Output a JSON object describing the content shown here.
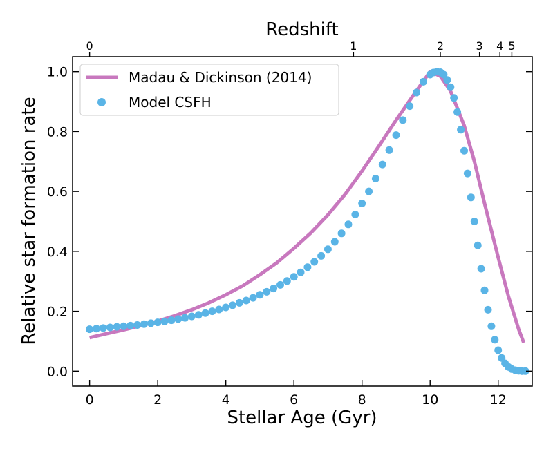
{
  "chart_data": {
    "type": "line+scatter",
    "xlabel": "Stellar Age (Gyr)",
    "ylabel": "Relative star formation rate",
    "top_xlabel": "Redshift",
    "xlim": [
      -0.5,
      13.0
    ],
    "ylim": [
      -0.05,
      1.05
    ],
    "x_ticks": [
      0,
      2,
      4,
      6,
      8,
      10,
      12
    ],
    "x_tick_labels": [
      "0",
      "2",
      "4",
      "6",
      "8",
      "10",
      "12"
    ],
    "y_ticks": [
      0.0,
      0.2,
      0.4,
      0.6,
      0.8,
      1.0
    ],
    "y_tick_labels": [
      "0.0",
      "0.2",
      "0.4",
      "0.6",
      "0.8",
      "1.0"
    ],
    "top_ticks": [
      {
        "label": "0",
        "age": 0.0
      },
      {
        "label": "1",
        "age": 7.75
      },
      {
        "label": "2",
        "age": 10.3
      },
      {
        "label": "3",
        "age": 11.45
      },
      {
        "label": "4",
        "age": 12.05
      },
      {
        "label": "5",
        "age": 12.4
      }
    ],
    "legend_position": "upper-left",
    "series": [
      {
        "name": "Madau & Dickinson (2014)",
        "kind": "line",
        "color": "#c878be",
        "x": [
          0.0,
          0.5,
          1.0,
          1.5,
          2.0,
          2.5,
          3.0,
          3.5,
          4.0,
          4.5,
          5.0,
          5.5,
          6.0,
          6.5,
          7.0,
          7.5,
          8.0,
          8.5,
          9.0,
          9.5,
          10.0,
          10.3,
          10.6,
          11.0,
          11.3,
          11.6,
          12.0,
          12.3,
          12.6,
          12.75
        ],
        "y": [
          0.112,
          0.125,
          0.138,
          0.152,
          0.167,
          0.185,
          0.205,
          0.228,
          0.255,
          0.285,
          0.322,
          0.362,
          0.41,
          0.462,
          0.522,
          0.59,
          0.668,
          0.752,
          0.838,
          0.92,
          1.0,
          0.985,
          0.935,
          0.82,
          0.7,
          0.56,
          0.38,
          0.25,
          0.14,
          0.095
        ]
      },
      {
        "name": "Model CSFH",
        "kind": "scatter",
        "color": "#5ab4e6",
        "x": [
          0.0,
          0.2,
          0.4,
          0.6,
          0.8,
          1.0,
          1.2,
          1.4,
          1.6,
          1.8,
          2.0,
          2.2,
          2.4,
          2.6,
          2.8,
          3.0,
          3.2,
          3.4,
          3.6,
          3.8,
          4.0,
          4.2,
          4.4,
          4.6,
          4.8,
          5.0,
          5.2,
          5.4,
          5.6,
          5.8,
          6.0,
          6.2,
          6.4,
          6.6,
          6.8,
          7.0,
          7.2,
          7.4,
          7.6,
          7.8,
          8.0,
          8.2,
          8.4,
          8.6,
          8.8,
          9.0,
          9.2,
          9.4,
          9.6,
          9.8,
          10.0,
          10.1,
          10.2,
          10.3,
          10.4,
          10.5,
          10.6,
          10.7,
          10.8,
          10.9,
          11.0,
          11.1,
          11.2,
          11.3,
          11.4,
          11.5,
          11.6,
          11.7,
          11.8,
          11.9,
          12.0,
          12.1,
          12.2,
          12.3,
          12.4,
          12.5,
          12.6,
          12.7,
          12.8
        ],
        "y": [
          0.14,
          0.142,
          0.144,
          0.146,
          0.148,
          0.15,
          0.152,
          0.154,
          0.157,
          0.16,
          0.163,
          0.166,
          0.17,
          0.174,
          0.178,
          0.183,
          0.188,
          0.194,
          0.2,
          0.206,
          0.213,
          0.22,
          0.228,
          0.236,
          0.245,
          0.255,
          0.265,
          0.276,
          0.288,
          0.301,
          0.315,
          0.33,
          0.347,
          0.365,
          0.385,
          0.407,
          0.432,
          0.46,
          0.49,
          0.523,
          0.56,
          0.6,
          0.643,
          0.69,
          0.738,
          0.788,
          0.838,
          0.885,
          0.93,
          0.966,
          0.99,
          0.997,
          1.0,
          0.998,
          0.99,
          0.972,
          0.948,
          0.912,
          0.865,
          0.806,
          0.736,
          0.66,
          0.58,
          0.5,
          0.42,
          0.342,
          0.27,
          0.205,
          0.15,
          0.105,
          0.07,
          0.044,
          0.026,
          0.014,
          0.007,
          0.003,
          0.001,
          0.0,
          0.0
        ]
      }
    ]
  }
}
